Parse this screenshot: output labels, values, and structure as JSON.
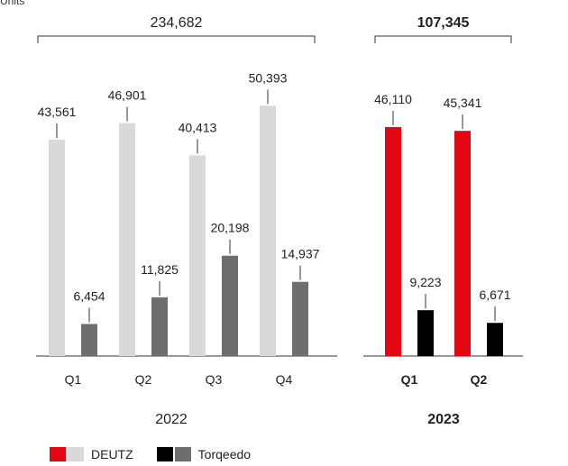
{
  "chart_data": {
    "type": "bar",
    "unit_label": "Units",
    "groups": [
      {
        "year": "2022",
        "year_bold": false,
        "total": "234,682",
        "total_bold": false,
        "quarters": [
          {
            "label": "Q1",
            "deutz": 43561,
            "deutz_label": "43,561",
            "torqeedo": 6454,
            "torqeedo_label": "6,454"
          },
          {
            "label": "Q2",
            "deutz": 46901,
            "deutz_label": "46,901",
            "torqeedo": 11825,
            "torqeedo_label": "11,825"
          },
          {
            "label": "Q3",
            "deutz": 40413,
            "deutz_label": "40,413",
            "torqeedo": 20198,
            "torqeedo_label": "20,198"
          },
          {
            "label": "Q4",
            "deutz": 50393,
            "deutz_label": "50,393",
            "torqeedo": 14937,
            "torqeedo_label": "14,937"
          }
        ],
        "colors": {
          "deutz": "#d9d9d9",
          "torqeedo": "#6e6e6e"
        }
      },
      {
        "year": "2023",
        "year_bold": true,
        "total": "107,345",
        "total_bold": true,
        "quarters": [
          {
            "label": "Q1",
            "deutz": 46110,
            "deutz_label": "46,110",
            "torqeedo": 9223,
            "torqeedo_label": "9,223"
          },
          {
            "label": "Q2",
            "deutz": 45341,
            "deutz_label": "45,341",
            "torqeedo": 6671,
            "torqeedo_label": "6,671"
          }
        ],
        "colors": {
          "deutz": "#e30613",
          "torqeedo": "#000000"
        }
      }
    ],
    "legend": [
      {
        "name": "DEUTZ",
        "colors": [
          "#e30613",
          "#d9d9d9"
        ]
      },
      {
        "name": "Torqeedo",
        "colors": [
          "#000000",
          "#6e6e6e"
        ]
      }
    ],
    "grid": false,
    "legend_position": "bottom-left"
  }
}
